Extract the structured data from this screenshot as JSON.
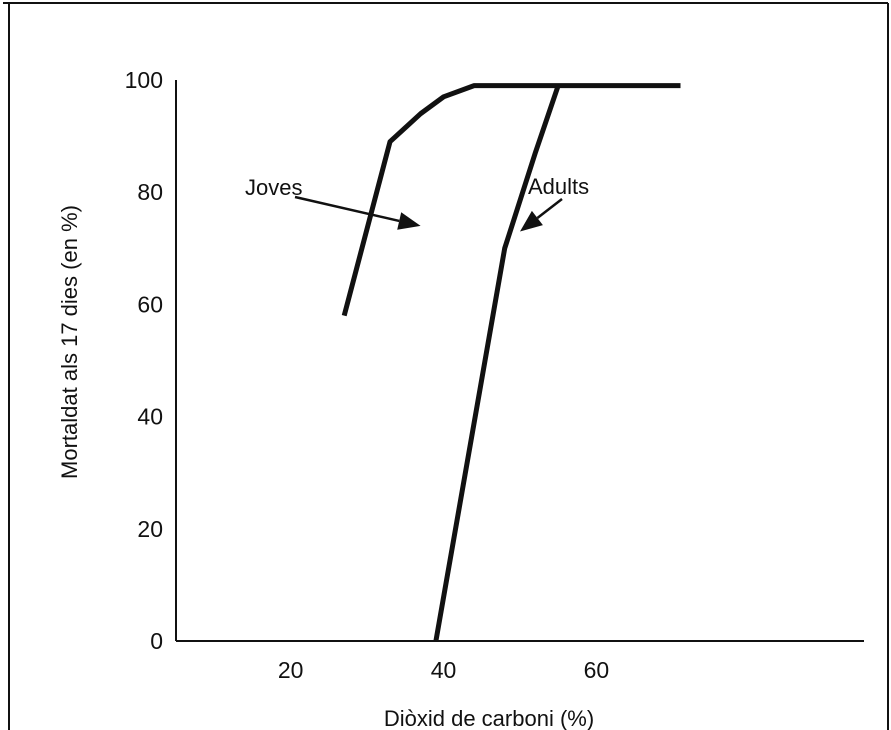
{
  "chart_data": {
    "type": "line",
    "title": "",
    "xlabel": "Diòxid de carboni (%)",
    "ylabel": "Mortaldat als 17 dies (en %)",
    "xlim": [
      5,
      95
    ],
    "ylim": [
      0,
      100
    ],
    "x_ticks": [
      20,
      40,
      60
    ],
    "y_ticks": [
      0,
      20,
      40,
      60,
      80,
      100
    ],
    "grid": false,
    "legend": "none",
    "line_color": "#111111",
    "series": [
      {
        "name": "Joves",
        "x": [
          27,
          33,
          37,
          40,
          44,
          56,
          71
        ],
        "y": [
          58,
          89,
          94,
          97,
          99,
          99,
          99
        ]
      },
      {
        "name": "Adults",
        "x": [
          39,
          48,
          52,
          55
        ],
        "y": [
          0,
          70,
          87,
          99
        ]
      }
    ],
    "annotations": [
      {
        "text": "Joves",
        "series": 0,
        "arrow_to": [
          37,
          74
        ]
      },
      {
        "text": "Adults",
        "series": 1,
        "arrow_to": [
          50,
          73
        ]
      }
    ]
  }
}
